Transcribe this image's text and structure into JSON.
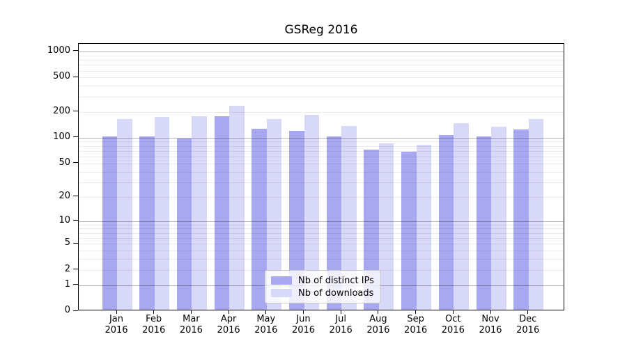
{
  "title": "GSReg 2016",
  "chart_data": {
    "type": "bar",
    "title": "GSReg 2016",
    "scale": "symlog-log1p",
    "grid": true,
    "legend_position": "lower center",
    "months": [
      "Jan",
      "Feb",
      "Mar",
      "Apr",
      "May",
      "Jun",
      "Jul",
      "Aug",
      "Sep",
      "Oct",
      "Nov",
      "Dec"
    ],
    "year": "2016",
    "categories": [
      "Jan 2016",
      "Feb 2016",
      "Mar 2016",
      "Apr 2016",
      "May 2016",
      "Jun 2016",
      "Jul 2016",
      "Aug 2016",
      "Sep 2016",
      "Oct 2016",
      "Nov 2016",
      "Dec 2016"
    ],
    "series": [
      {
        "name": "Nb of distinct IPs",
        "color": "#a8a8f0",
        "values": [
          100,
          100,
          94,
          170,
          122,
          115,
          100,
          70,
          66,
          104,
          100,
          121
        ]
      },
      {
        "name": "Nb of downloads",
        "color": "#d8d8f9",
        "values": [
          159,
          168,
          170,
          226,
          160,
          178,
          132,
          82,
          79,
          143,
          129,
          160
        ]
      }
    ],
    "y_ticks": [
      0,
      1,
      2,
      5,
      10,
      20,
      50,
      100,
      200,
      500,
      1000
    ],
    "ylim": [
      0,
      1225
    ],
    "xlabel": "",
    "ylabel": ""
  },
  "colors": {
    "bar_distinct_ips": "#a8a8f0",
    "bar_downloads": "#d8d8f9",
    "grid_major": "#b3b3b3",
    "grid_minor": "#ebebeb",
    "spine": "#000000",
    "background": "#ffffff"
  }
}
